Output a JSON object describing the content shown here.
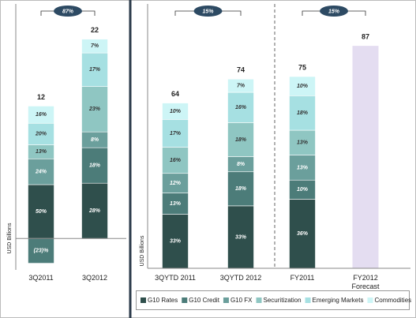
{
  "chart_data": [
    {
      "type": "bar",
      "ylabel": "USD Billions",
      "categories": [
        "3Q2011",
        "3Q2012"
      ],
      "totals": [
        12,
        22
      ],
      "annotations": [
        "87%"
      ],
      "ylim": [
        -3.5,
        25
      ],
      "series": [
        {
          "color": "#2f4f4c",
          "values": [
            50,
            28
          ],
          "value_labels": [
            "50%",
            "28%"
          ]
        },
        {
          "color": "#4c7c79",
          "values": [
            -23,
            18
          ],
          "value_labels": [
            "(23)%",
            "18%"
          ]
        },
        {
          "color": "#6b9f9c",
          "values": [
            24,
            8
          ],
          "value_labels": [
            "24%",
            "8%"
          ]
        },
        {
          "color": "#8fc6c2",
          "values": [
            13,
            23
          ],
          "value_labels": [
            "13%",
            "23%"
          ]
        },
        {
          "color": "#a6e0e2",
          "values": [
            20,
            17
          ],
          "value_labels": [
            "20%",
            "17%"
          ]
        },
        {
          "color": "#cdf5f6",
          "values": [
            16,
            7
          ],
          "value_labels": [
            "16%",
            "7%"
          ]
        }
      ]
    },
    {
      "type": "bar",
      "ylabel": "USD Billions",
      "categories": [
        "3QYTD 2011",
        "3QYTD 2012",
        "FY2011",
        "FY2012 Forecast"
      ],
      "totals": [
        64,
        74,
        75,
        87
      ],
      "forecast_color": "#e4ddf1",
      "annotations": [
        "15%",
        "15%"
      ],
      "ylim": [
        0,
        100
      ],
      "series": [
        {
          "name": "G10 Rates",
          "color": "#2f4f4c",
          "values": [
            33,
            33,
            36,
            null
          ],
          "value_labels": [
            "33%",
            "33%",
            "36%",
            null
          ]
        },
        {
          "name": "G10 Credit",
          "color": "#4c7c79",
          "values": [
            13,
            18,
            10,
            null
          ],
          "value_labels": [
            "13%",
            "18%",
            "10%",
            null
          ]
        },
        {
          "name": "G10 FX",
          "color": "#6b9f9c",
          "values": [
            12,
            8,
            13,
            null
          ],
          "value_labels": [
            "12%",
            "8%",
            "13%",
            null
          ]
        },
        {
          "name": "Securitization",
          "color": "#8fc6c2",
          "values": [
            16,
            18,
            13,
            null
          ],
          "value_labels": [
            "16%",
            "18%",
            "13%",
            null
          ]
        },
        {
          "name": "Emerging Markets",
          "color": "#a6e0e2",
          "values": [
            17,
            16,
            18,
            null
          ],
          "value_labels": [
            "17%",
            "16%",
            "18%",
            null
          ]
        },
        {
          "name": "Commodities",
          "color": "#cdf5f6",
          "values": [
            10,
            7,
            10,
            null
          ],
          "value_labels": [
            "10%",
            "7%",
            "10%",
            null
          ]
        }
      ]
    }
  ]
}
